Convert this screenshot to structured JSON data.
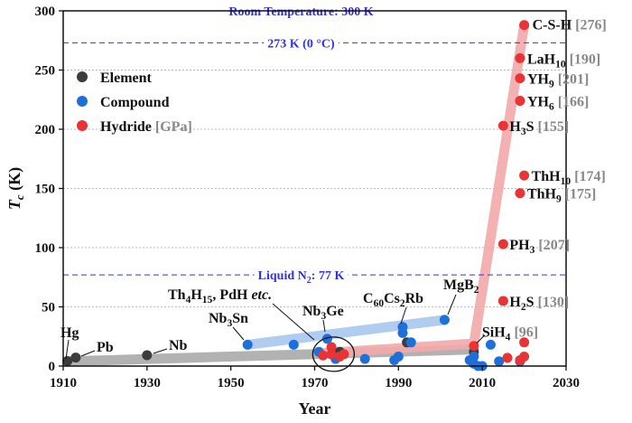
{
  "chart_data": {
    "type": "scatter",
    "title": "",
    "xlabel": "Year",
    "ylabel": "T",
    "ylabel_sub": "c",
    "ylabel_unit": " (K)",
    "xlim": [
      1910,
      2030
    ],
    "ylim": [
      0,
      300
    ],
    "xticks": [
      1910,
      1930,
      1950,
      1970,
      1990,
      2010,
      2030
    ],
    "yticks": [
      0,
      50,
      100,
      150,
      200,
      250,
      300
    ],
    "grid": "horizontal-dotted",
    "legend_position": "top-left",
    "legend": [
      {
        "name": "Element",
        "note": "",
        "color": "#3c3c3c"
      },
      {
        "name": "Compound",
        "note": "",
        "color": "#1e6fd9"
      },
      {
        "name": "Hydride",
        "note": "[GPa]",
        "color": "#e83434"
      }
    ],
    "reference_lines": [
      {
        "value": 300,
        "label": "Room Temperature: 300 K"
      },
      {
        "value": 273,
        "label": "273 K (0 °C)"
      },
      {
        "value": 77,
        "label": "Liquid N",
        "label_sub": "2",
        "label_tail": ": 77 K"
      }
    ],
    "series": [
      {
        "name": "Element",
        "color": "#3c3c3c",
        "points": [
          [
            1911,
            4.2
          ],
          [
            1913,
            7.2
          ],
          [
            1930,
            9.2
          ],
          [
            1976,
            12
          ],
          [
            1992,
            20
          ],
          [
            2008,
            12
          ]
        ]
      },
      {
        "name": "Compound",
        "color": "#1e6fd9",
        "points": [
          [
            1954,
            18
          ],
          [
            1965,
            18
          ],
          [
            1973,
            23
          ],
          [
            1971,
            12
          ],
          [
            1975,
            6
          ],
          [
            1982,
            6
          ],
          [
            1989,
            5
          ],
          [
            1990,
            8
          ],
          [
            1991,
            28
          ],
          [
            1991,
            33
          ],
          [
            1993,
            20
          ],
          [
            2001,
            39
          ],
          [
            2007,
            5
          ],
          [
            2008,
            8
          ],
          [
            2008,
            2
          ],
          [
            2009,
            0
          ],
          [
            2010,
            0
          ],
          [
            2012,
            18
          ],
          [
            2014,
            4
          ],
          [
            2019,
            4
          ]
        ]
      },
      {
        "name": "Hydride",
        "color": "#e83434",
        "points": [
          [
            2020,
            288
          ],
          [
            2019,
            260
          ],
          [
            2019,
            243
          ],
          [
            2019,
            224
          ],
          [
            2015,
            203
          ],
          [
            2020,
            161
          ],
          [
            2019,
            146
          ],
          [
            2015,
            103
          ],
          [
            2015,
            55
          ],
          [
            2008,
            17
          ],
          [
            1972,
            9
          ],
          [
            1974,
            10
          ],
          [
            1974,
            16
          ],
          [
            1976,
            8
          ],
          [
            1977,
            10
          ],
          [
            2016,
            7
          ],
          [
            2019,
            5
          ],
          [
            2020,
            8
          ],
          [
            2020,
            20
          ]
        ]
      }
    ],
    "trend_bands": [
      {
        "series": "Element",
        "color": "#aaaaaa",
        "from": [
          1911,
          4
        ],
        "to": [
          2008,
          14
        ]
      },
      {
        "series": "Compound",
        "color": "#a9c6ef",
        "from": [
          1954,
          18
        ],
        "to": [
          2001,
          39
        ]
      },
      {
        "series": "Hydride",
        "color": "#f2a9a9",
        "path": [
          [
            1972,
            11
          ],
          [
            2008,
            19
          ],
          [
            2020,
            288
          ]
        ]
      }
    ],
    "hydride_labels": [
      {
        "x": 2020,
        "y": 288,
        "parts": [
          {
            "t": "C-S-H "
          }
        ],
        "note": "[276]"
      },
      {
        "x": 2019,
        "y": 260,
        "parts": [
          {
            "t": "LaH"
          },
          {
            "sub": "10"
          },
          {
            "t": " "
          }
        ],
        "note": "[190]"
      },
      {
        "x": 2019,
        "y": 243,
        "parts": [
          {
            "t": "YH"
          },
          {
            "sub": "9"
          },
          {
            "t": " "
          }
        ],
        "note": "[201]"
      },
      {
        "x": 2019,
        "y": 224,
        "parts": [
          {
            "t": "YH"
          },
          {
            "sub": "6"
          },
          {
            "t": " "
          }
        ],
        "note": "[166]"
      },
      {
        "x": 2015,
        "y": 203,
        "parts": [
          {
            "t": "H"
          },
          {
            "sub": "3"
          },
          {
            "t": "S "
          }
        ],
        "note": "[155]"
      },
      {
        "x": 2020,
        "y": 161,
        "parts": [
          {
            "t": "ThH"
          },
          {
            "sub": "10"
          },
          {
            "t": " "
          }
        ],
        "note": "[174]"
      },
      {
        "x": 2019,
        "y": 146,
        "parts": [
          {
            "t": "ThH"
          },
          {
            "sub": "9"
          },
          {
            "t": " "
          }
        ],
        "note": "[175]"
      },
      {
        "x": 2015,
        "y": 103,
        "parts": [
          {
            "t": "PH"
          },
          {
            "sub": "3"
          },
          {
            "t": " "
          }
        ],
        "note": "[207]"
      },
      {
        "x": 2015,
        "y": 55,
        "parts": [
          {
            "t": "H"
          },
          {
            "sub": "2"
          },
          {
            "t": "S "
          }
        ],
        "note": "[130]"
      },
      {
        "x": 2008,
        "y": 17,
        "parts": [
          {
            "t": "SiH"
          },
          {
            "sub": "4"
          },
          {
            "t": " "
          }
        ],
        "note": "[96]"
      }
    ],
    "annotations": [
      {
        "key": "hg",
        "parts": [
          {
            "t": "Hg"
          }
        ]
      },
      {
        "key": "pb",
        "parts": [
          {
            "t": "Pb"
          }
        ]
      },
      {
        "key": "nb",
        "parts": [
          {
            "t": "Nb"
          }
        ]
      },
      {
        "key": "nb3sn",
        "parts": [
          {
            "t": "Nb"
          },
          {
            "sub": "3"
          },
          {
            "t": "Sn"
          }
        ]
      },
      {
        "key": "th4h15",
        "parts": [
          {
            "t": "Th"
          },
          {
            "sub": "4"
          },
          {
            "t": "H"
          },
          {
            "sub": "15"
          },
          {
            "t": ", PdH "
          },
          {
            "it": "etc."
          }
        ]
      },
      {
        "key": "nb3ge",
        "parts": [
          {
            "t": "Nb"
          },
          {
            "sub": "3"
          },
          {
            "t": "Ge"
          }
        ]
      },
      {
        "key": "c60",
        "parts": [
          {
            "t": "C"
          },
          {
            "sub": "60"
          },
          {
            "t": "Cs"
          },
          {
            "sub": "2"
          },
          {
            "t": "Rb"
          }
        ]
      },
      {
        "key": "mgb2",
        "parts": [
          {
            "t": "MgB"
          },
          {
            "sub": "2"
          }
        ]
      }
    ]
  }
}
